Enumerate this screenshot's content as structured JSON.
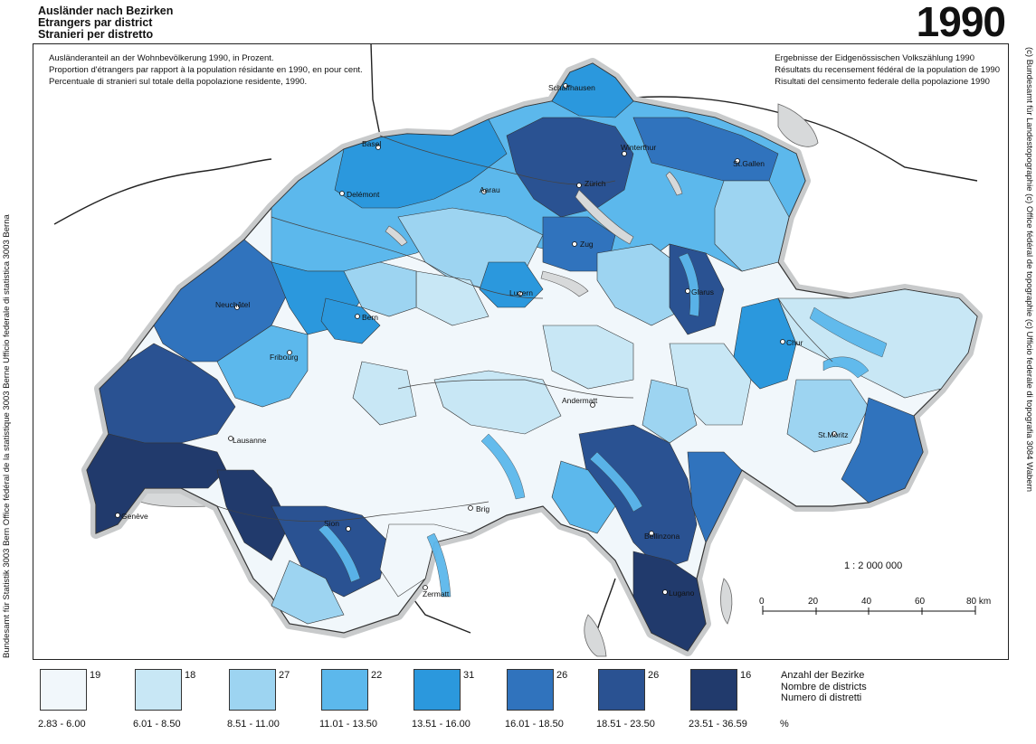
{
  "header": {
    "title_lines": [
      "Ausländer nach Bezirken",
      "Etrangers par district",
      "Stranieri per distretto"
    ],
    "year": "1990"
  },
  "description": {
    "left_lines": [
      "Ausländeranteil an der Wohnbevölkerung 1990, in Prozent.",
      "Proportion d'étrangers par rapport à la population résidante en 1990, en pour cent.",
      "Percentuale di stranieri sul totale della popolazione residente, 1990."
    ],
    "right_lines": [
      "Ergebnisse der Eidgenössischen Volkszählung 1990",
      "Résultats du recensement fédéral de la population de 1990",
      "Risultati del censimento federale della popolazione 1990"
    ]
  },
  "side_credits": {
    "left": "Bundesamt für Statistik 3003 Bern    Office fédéral de la statistique 3003 Berne    Ufficio federale di statistica 3003 Berna",
    "right": "(c) Bundesamt für Landestopographie    (c) Office fédéral de topographie    (c) Ufficio federale di topografia  3084 Wabern"
  },
  "map": {
    "places": [
      "Schaffhausen",
      "Basel",
      "Winterthur",
      "St.Gallen",
      "Delémont",
      "Aarau",
      "Zürich",
      "Zug",
      "Luzern",
      "Glarus",
      "Neuchâtel",
      "Bern",
      "Chur",
      "Fribourg",
      "Andermatt",
      "St.Moritz",
      "Lausanne",
      "Bellinzona",
      "Genève",
      "Brig",
      "Sion",
      "Lugano",
      "Zermatt"
    ],
    "colors": {
      "water": "#d7d9da",
      "border": "#333333",
      "river": "#555555"
    }
  },
  "scale": {
    "ratio": "1 : 2 000 000",
    "ticks": [
      "0",
      "20",
      "40",
      "60",
      "80 km"
    ]
  },
  "legend": {
    "classes": [
      {
        "count": "19",
        "range": "2.83 - 6.00",
        "color": "#f1f7fb"
      },
      {
        "count": "18",
        "range": "6.01 - 8.50",
        "color": "#c8e7f5"
      },
      {
        "count": "27",
        "range": "8.51 - 11.00",
        "color": "#9dd4f1"
      },
      {
        "count": "22",
        "range": "11.01 - 13.50",
        "color": "#5cb8ec"
      },
      {
        "count": "31",
        "range": "13.51 - 16.00",
        "color": "#2b98dd"
      },
      {
        "count": "26",
        "range": "16.01 - 18.50",
        "color": "#3073bd"
      },
      {
        "count": "26",
        "range": "18.51 - 23.50",
        "color": "#2a5292"
      },
      {
        "count": "16",
        "range": "23.51 - 36.59",
        "color": "#213a6c"
      }
    ],
    "caption_lines": [
      "Anzahl der Bezirke",
      "Nombre de districts",
      "Numero di distretti"
    ],
    "unit": "%"
  }
}
